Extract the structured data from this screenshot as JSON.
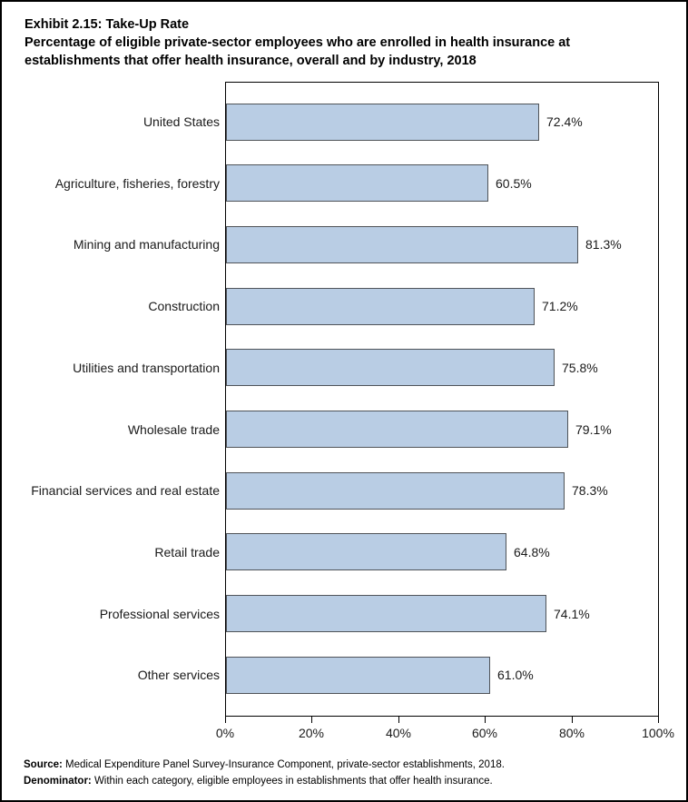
{
  "header": {
    "title": "Exhibit 2.15: Take-Up Rate",
    "subtitle_line1": "Percentage of eligible private-sector employees who are enrolled in health insurance at",
    "subtitle_line2": "establishments that offer health insurance, overall and by industry, 2018"
  },
  "chart_data": {
    "type": "bar",
    "orientation": "horizontal",
    "title": "Exhibit 2.15: Take-Up Rate",
    "subtitle": "Percentage of eligible private-sector employees who are enrolled in health insurance at establishments that offer health insurance, overall and by industry, 2018",
    "categories": [
      "United States",
      "Agriculture, fisheries, forestry",
      "Mining and manufacturing",
      "Construction",
      "Utilities and transportation",
      "Wholesale trade",
      "Financial services and real estate",
      "Retail trade",
      "Professional services",
      "Other services"
    ],
    "values": [
      72.4,
      60.5,
      81.3,
      71.2,
      75.8,
      79.1,
      78.3,
      64.8,
      74.1,
      61.0
    ],
    "value_labels": [
      "72.4%",
      "60.5%",
      "81.3%",
      "71.2%",
      "75.8%",
      "79.1%",
      "78.3%",
      "64.8%",
      "74.1%",
      "61.0%"
    ],
    "xlabel": "",
    "ylabel": "",
    "xlim": [
      0,
      100
    ],
    "x_tick_labels": [
      "0%",
      "20%",
      "40%",
      "60%",
      "80%",
      "100%"
    ],
    "x_tick_values": [
      0,
      20,
      40,
      60,
      80,
      100
    ],
    "grid": false,
    "legend": "none",
    "bar_fill_color": "#B9CDE4",
    "bar_border_color": "#4F5358"
  },
  "footer": {
    "source_label": "Source:",
    "source_text": "Medical Expenditure Panel Survey-Insurance Component, private-sector establishments, 2018.",
    "denominator_label": "Denominator:",
    "denominator_text": "Within each category, eligible employees in establishments that offer health insurance."
  }
}
